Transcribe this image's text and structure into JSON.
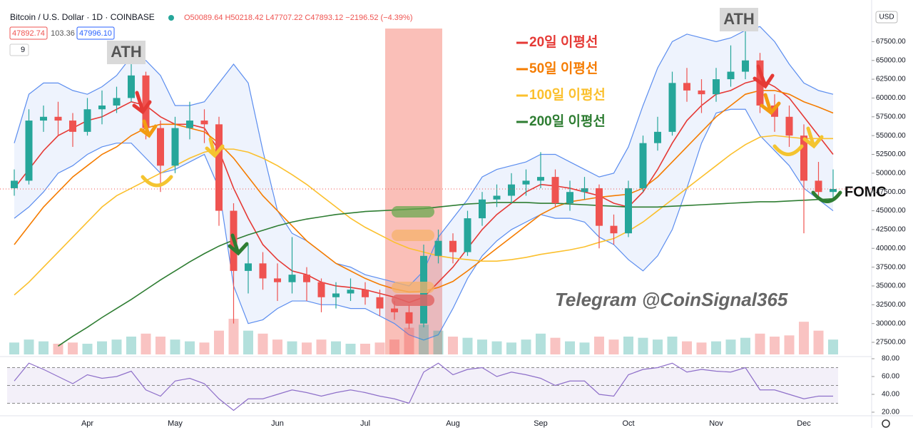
{
  "header": {
    "symbol": "Bitcoin / U.S. Dollar · 1D · COINBASE",
    "ohlc": "O50089.64 H50218.42 L47707.22 C47893.12 −2196.52 (−4.39%)",
    "bid": "47892.74",
    "spread": "103.36",
    "ask": "47996.10",
    "interval": "9",
    "currency": "USD"
  },
  "chart_data": {
    "type": "candlestick",
    "categories": [
      null,
      null,
      null,
      null,
      null,
      "Apr",
      null,
      null,
      null,
      null,
      null,
      "May",
      null,
      null,
      null,
      null,
      null,
      null,
      "Jun",
      null,
      null,
      null,
      null,
      null,
      "Jul",
      null,
      null,
      null,
      null,
      null,
      "Aug",
      null,
      null,
      null,
      null,
      null,
      "Sep",
      null,
      null,
      null,
      null,
      null,
      "Oct",
      null,
      null,
      null,
      null,
      null,
      "Nov",
      null,
      null,
      null,
      null,
      null,
      "Dec",
      null,
      null
    ],
    "opens": [
      48000,
      49000,
      57000,
      57500,
      57000,
      55500,
      58500,
      59000,
      60000,
      63000,
      56000,
      51000,
      56000,
      57000,
      56500,
      45000,
      37000,
      38000,
      36000,
      35500,
      36500,
      35500,
      33500,
      34000,
      34500,
      33500,
      32000,
      31500,
      30000,
      39000,
      41000,
      39500,
      44000,
      46500,
      47000,
      48500,
      49000,
      49500,
      46000,
      47500,
      48000,
      43000,
      42000,
      48000,
      54000,
      55500,
      62000,
      61000,
      60500,
      62500,
      63500,
      65000,
      59000,
      57500,
      55000,
      49000,
      47500
    ],
    "highs": [
      50500,
      58500,
      59000,
      59500,
      58000,
      60000,
      61000,
      61500,
      64800,
      63500,
      57000,
      57500,
      59500,
      58500,
      57500,
      46000,
      40500,
      39500,
      38000,
      41500,
      37500,
      36000,
      35500,
      36000,
      35500,
      34500,
      33000,
      32500,
      40500,
      42500,
      42000,
      45000,
      47500,
      48500,
      50000,
      50500,
      52800,
      50500,
      49000,
      49500,
      48500,
      44500,
      49000,
      55000,
      57500,
      63500,
      64000,
      62500,
      64000,
      67000,
      69000,
      66000,
      60500,
      59000,
      56500,
      51500,
      50500
    ],
    "lows": [
      47000,
      48500,
      55500,
      55000,
      53500,
      55000,
      56500,
      58000,
      59500,
      54500,
      47500,
      50000,
      54500,
      54000,
      43000,
      30000,
      34000,
      34500,
      33000,
      34000,
      33000,
      31500,
      32000,
      33000,
      32500,
      31000,
      30500,
      29300,
      29500,
      38000,
      38000,
      39000,
      43000,
      45500,
      46000,
      47000,
      48000,
      45500,
      45000,
      46500,
      40000,
      40500,
      41500,
      47500,
      53000,
      55000,
      59500,
      58000,
      59500,
      61500,
      62500,
      58000,
      55500,
      53500,
      42000,
      46500,
      46800
    ],
    "closes": [
      49000,
      57000,
      57500,
      57000,
      55500,
      58500,
      59000,
      60000,
      63000,
      56000,
      51000,
      56000,
      57000,
      56500,
      45000,
      37000,
      38000,
      36000,
      35500,
      36500,
      35500,
      33500,
      34000,
      34500,
      33500,
      32000,
      31500,
      30000,
      39000,
      41000,
      39500,
      44000,
      46500,
      47000,
      48500,
      49000,
      49500,
      46000,
      47500,
      48000,
      43000,
      42000,
      48000,
      54000,
      55500,
      62000,
      61000,
      60500,
      62500,
      63500,
      65000,
      59000,
      57500,
      55000,
      49000,
      47500,
      47900
    ],
    "up_color": "#26a69a",
    "down_color": "#ef5350",
    "series": [
      {
        "name": "20일 이평선",
        "color": "#e53935",
        "values": [
          48000,
          50500,
          53000,
          55000,
          56000,
          57000,
          57500,
          58500,
          59500,
          59000,
          57500,
          56500,
          56500,
          56000,
          53000,
          48000,
          44000,
          40500,
          38500,
          37000,
          36500,
          35500,
          35000,
          34800,
          34500,
          34000,
          33500,
          32800,
          33500,
          35500,
          37500,
          40000,
          42500,
          44500,
          46000,
          47500,
          48500,
          48300,
          48000,
          47500,
          47000,
          46000,
          45500,
          47500,
          50500,
          54000,
          57000,
          59000,
          60500,
          61000,
          62000,
          62500,
          61500,
          60000,
          57500,
          55000,
          52500
        ]
      },
      {
        "name": "50일 이평선",
        "color": "#f57c00",
        "values": [
          40500,
          43000,
          45500,
          47500,
          49500,
          51000,
          52500,
          53500,
          55000,
          56000,
          56500,
          56500,
          56000,
          55500,
          54000,
          52000,
          49500,
          47000,
          45000,
          43000,
          41000,
          39500,
          38000,
          37000,
          36000,
          35200,
          34600,
          34200,
          34300,
          34800,
          35600,
          37000,
          38500,
          40000,
          41500,
          43000,
          44500,
          45500,
          46200,
          46500,
          46800,
          47000,
          47200,
          48000,
          49500,
          51500,
          53500,
          55500,
          57500,
          59000,
          60500,
          61000,
          61000,
          60500,
          59500,
          58800,
          58000
        ]
      },
      {
        "name": "100일 이평선",
        "color": "#fbc02d",
        "values": [
          33800,
          35500,
          37500,
          39500,
          41500,
          43500,
          45500,
          47000,
          48000,
          49000,
          50000,
          51000,
          52000,
          52800,
          53200,
          53200,
          52800,
          52000,
          51000,
          49800,
          48500,
          47000,
          45500,
          44000,
          42800,
          41800,
          40800,
          40000,
          39500,
          39000,
          38700,
          38500,
          38300,
          38300,
          38500,
          38800,
          39200,
          39500,
          39800,
          40200,
          40800,
          41300,
          42300,
          43500,
          45000,
          46500,
          48000,
          49500,
          51000,
          52500,
          53800,
          54800,
          55000,
          54800,
          54600,
          54600,
          54600
        ]
      },
      {
        "name": "200일 이평선",
        "color": "#2e7d32",
        "values": [
          null,
          null,
          null,
          27000,
          28300,
          29500,
          30800,
          32000,
          33200,
          34500,
          35800,
          37000,
          38200,
          39300,
          40300,
          41100,
          41800,
          42400,
          43000,
          43500,
          43900,
          44200,
          44500,
          44700,
          44900,
          45000,
          45100,
          45200,
          45300,
          45500,
          45700,
          45900,
          46000,
          46100,
          46100,
          46100,
          46000,
          46000,
          45900,
          45800,
          45700,
          45600,
          45500,
          45500,
          45500,
          45600,
          45700,
          45800,
          45900,
          46000,
          46100,
          46200,
          46200,
          46300,
          46400,
          46500,
          46600
        ]
      }
    ],
    "bollinger": {
      "color": "#5b8def",
      "upper": [
        54000,
        60500,
        62000,
        62000,
        61000,
        60500,
        61500,
        63000,
        65500,
        65000,
        63000,
        59000,
        59000,
        59500,
        62000,
        64500,
        62000,
        53000,
        45000,
        42000,
        41000,
        39500,
        38000,
        37500,
        36500,
        36000,
        35500,
        35000,
        37000,
        41500,
        44000,
        46500,
        49500,
        50500,
        51000,
        51500,
        52500,
        52500,
        51500,
        50500,
        49500,
        50000,
        53500,
        59000,
        64000,
        67500,
        68500,
        68000,
        67500,
        68000,
        69000,
        69500,
        67500,
        64500,
        62000,
        61000,
        60500
      ],
      "lower": [
        44000,
        45500,
        47500,
        50000,
        51000,
        52500,
        53500,
        54000,
        54000,
        52000,
        50000,
        50500,
        51500,
        52500,
        48000,
        35000,
        30000,
        30500,
        32000,
        33000,
        33000,
        32500,
        32500,
        32000,
        32000,
        31000,
        30000,
        28500,
        27800,
        28500,
        32000,
        36000,
        39000,
        41000,
        42500,
        43500,
        44500,
        44000,
        44000,
        43500,
        41500,
        40500,
        38500,
        37000,
        39000,
        42500,
        48000,
        54000,
        58000,
        58500,
        58500,
        55000,
        53000,
        51000,
        48000,
        46500,
        45000
      ]
    },
    "volume": [
      20,
      25,
      22,
      18,
      20,
      18,
      22,
      25,
      30,
      35,
      30,
      25,
      22,
      20,
      40,
      60,
      40,
      35,
      25,
      22,
      20,
      25,
      22,
      18,
      18,
      20,
      25,
      45,
      50,
      40,
      30,
      28,
      25,
      22,
      20,
      25,
      35,
      28,
      22,
      20,
      30,
      25,
      30,
      28,
      25,
      30,
      22,
      20,
      22,
      25,
      28,
      35,
      30,
      32,
      55,
      40,
      25
    ],
    "ylim": [
      25890,
      71330
    ],
    "yticks": [
      {
        "value": 27500,
        "label": "27500.00"
      },
      {
        "value": 30000,
        "label": "30000.00"
      },
      {
        "value": 32500,
        "label": "32500.00"
      },
      {
        "value": 35000,
        "label": "35000.00"
      },
      {
        "value": 37500,
        "label": "37500.00"
      },
      {
        "value": 40000,
        "label": "40000.00"
      },
      {
        "value": 42500,
        "label": "42500.00"
      },
      {
        "value": 45000,
        "label": "45000.00"
      },
      {
        "value": 47500,
        "label": "47500.00"
      },
      {
        "value": 50000,
        "label": "50000.00"
      },
      {
        "value": 52500,
        "label": "52500.00"
      },
      {
        "value": 55000,
        "label": "55000.00"
      },
      {
        "value": 57500,
        "label": "57500.00"
      },
      {
        "value": 60000,
        "label": "60000.00"
      },
      {
        "value": 62500,
        "label": "62500.00"
      },
      {
        "value": 65000,
        "label": "65000.00"
      },
      {
        "value": 67500,
        "label": "67500.00"
      }
    ],
    "grid": false,
    "rsi": {
      "color": "#8e6fc9",
      "values": [
        55,
        75,
        68,
        60,
        52,
        62,
        58,
        60,
        66,
        45,
        38,
        55,
        58,
        52,
        35,
        22,
        35,
        35,
        40,
        45,
        42,
        38,
        42,
        45,
        42,
        38,
        35,
        30,
        65,
        75,
        62,
        68,
        70,
        60,
        65,
        62,
        58,
        50,
        55,
        55,
        40,
        38,
        62,
        68,
        70,
        75,
        65,
        68,
        66,
        65,
        70,
        45,
        45,
        40,
        35,
        38,
        38
      ],
      "levels": [
        30,
        50,
        70
      ],
      "ylim": [
        16,
        82.4
      ],
      "yticks": [
        {
          "value": 20,
          "label": "20.00"
        },
        {
          "value": 40,
          "label": "40.00"
        },
        {
          "value": 60,
          "label": "60.00"
        },
        {
          "value": 80,
          "label": "80.00"
        }
      ]
    },
    "annotations": {
      "ath_1": "ATH",
      "ath_2": "ATH",
      "fomc": "FOMC",
      "watermark": "Telegram @CoinSignal365"
    }
  }
}
